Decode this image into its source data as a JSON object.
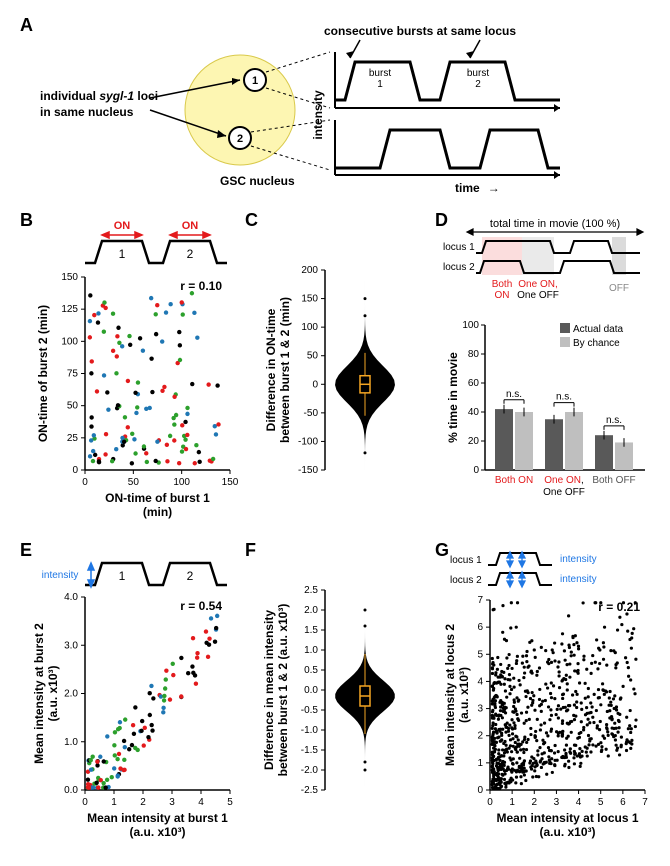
{
  "panelA": {
    "label": "A",
    "title_top": "consecutive bursts at same locus",
    "text_left_l1": "individual ",
    "text_left_gene": "sygl-1",
    "text_left_l2": " loci",
    "text_left_l3": "in same nucleus",
    "nucleus_label": "GSC nucleus",
    "locus1": "1",
    "locus2": "2",
    "burst1": "burst",
    "burst1b": "1",
    "burst2": "burst",
    "burst2b": "2",
    "ylab": "intensity",
    "xlab": "time",
    "arrow": "→"
  },
  "panelB": {
    "label": "B",
    "on_label": "ON",
    "n1": "1",
    "n2": "2",
    "r_text": "r = 0.10",
    "xlab": "ON-time of burst 1",
    "xunit": "(min)",
    "ylab": "ON-time of burst 2 (min)",
    "xlim": [
      0,
      150
    ],
    "xticks": [
      0,
      50,
      100,
      150
    ],
    "ylim": [
      0,
      150
    ],
    "yticks": [
      0,
      25,
      50,
      75,
      100,
      125,
      150
    ],
    "point_colors": [
      "#000000",
      "#e31a1c",
      "#2ca02c",
      "#1f77b4"
    ],
    "n_points": 130
  },
  "panelC": {
    "label": "C",
    "ylab_l1": "Difference in ON-time",
    "ylab_l2": "between burst 1 & 2 (min)",
    "ylim": [
      -150,
      200
    ],
    "yticks": [
      -150,
      -100,
      -50,
      0,
      50,
      100,
      150,
      200
    ],
    "violin_color": "#000000",
    "box_stroke": "#f5a623"
  },
  "panelD": {
    "label": "D",
    "top_l1": "total time in movie (100 %)",
    "locus1": "locus 1",
    "locus2": "locus 2",
    "both_on": "Both",
    "both_on2": "ON",
    "one_on": "One ON,",
    "one_off": "One OFF",
    "off": "OFF",
    "leg_actual": "Actual data",
    "leg_chance": "By chance",
    "ns": "n.s.",
    "ylab": "% time in movie",
    "categories": [
      "Both ON",
      "One ON,\nOne OFF",
      "Both OFF"
    ],
    "cat_colors": [
      "#e31a1c",
      "#000000",
      "#888888"
    ],
    "cat_text": [
      [
        "Both ON",
        ""
      ],
      [
        "One ON,",
        "One OFF"
      ],
      [
        "Both OFF",
        ""
      ]
    ],
    "cat1_color": "#e31a1c",
    "actual_vals": [
      42,
      35,
      24
    ],
    "chance_vals": [
      40,
      40,
      19
    ],
    "errors": [
      3,
      3,
      3
    ],
    "ylim": [
      0,
      100
    ],
    "yticks": [
      0,
      20,
      40,
      60,
      80,
      100
    ],
    "bar_color_actual": "#595959",
    "bar_color_chance": "#bfbfbf"
  },
  "panelE": {
    "label": "E",
    "intensity_label": "intensity",
    "n1": "1",
    "n2": "2",
    "r_text": "r = 0.54",
    "xlab": "Mean intensity at burst 1",
    "xunit": "(a.u. x10³)",
    "ylab_l1": "Mean intensity at burst 2",
    "ylab_unit": "(a.u. x10³)",
    "xlim": [
      0,
      5
    ],
    "xticks": [
      0,
      1,
      2,
      3,
      4,
      5
    ],
    "ylim": [
      0,
      4
    ],
    "yticks": [
      0,
      1.0,
      2.0,
      3.0,
      4.0
    ],
    "point_colors": [
      "#000000",
      "#e31a1c",
      "#2ca02c",
      "#1f77b4"
    ],
    "n_points": 120
  },
  "panelF": {
    "label": "F",
    "ylab_l1": "Difference in mean intensity",
    "ylab_l2": "between burst 1 & 2 (a.u. x10³)",
    "ylim": [
      -2.5,
      2.5
    ],
    "yticks": [
      -2.5,
      -2.0,
      -1.5,
      -1.0,
      -0.5,
      0,
      0.5,
      1.0,
      1.5,
      2.0,
      2.5
    ],
    "violin_color": "#000000",
    "box_stroke": "#f5a623"
  },
  "panelG": {
    "label": "G",
    "locus1": "locus 1",
    "locus2": "locus 2",
    "int_label": "intensity",
    "r_text": "r = 0.21",
    "xlab": "Mean intensity at locus 1",
    "xunit": "(a.u. x10³)",
    "ylab_l1": "Mean intensity at locus 2",
    "ylab_unit": "(a.u. x10³)",
    "xlim": [
      0,
      7
    ],
    "xticks": [
      0,
      1,
      2,
      3,
      4,
      5,
      6,
      7
    ],
    "ylim": [
      0,
      7
    ],
    "yticks": [
      0,
      1,
      2,
      3,
      4,
      5,
      6,
      7
    ],
    "n_points": 800
  },
  "colors": {
    "yellow_fill": "#fdf6b2",
    "yellow_stroke": "#d9c94b"
  }
}
